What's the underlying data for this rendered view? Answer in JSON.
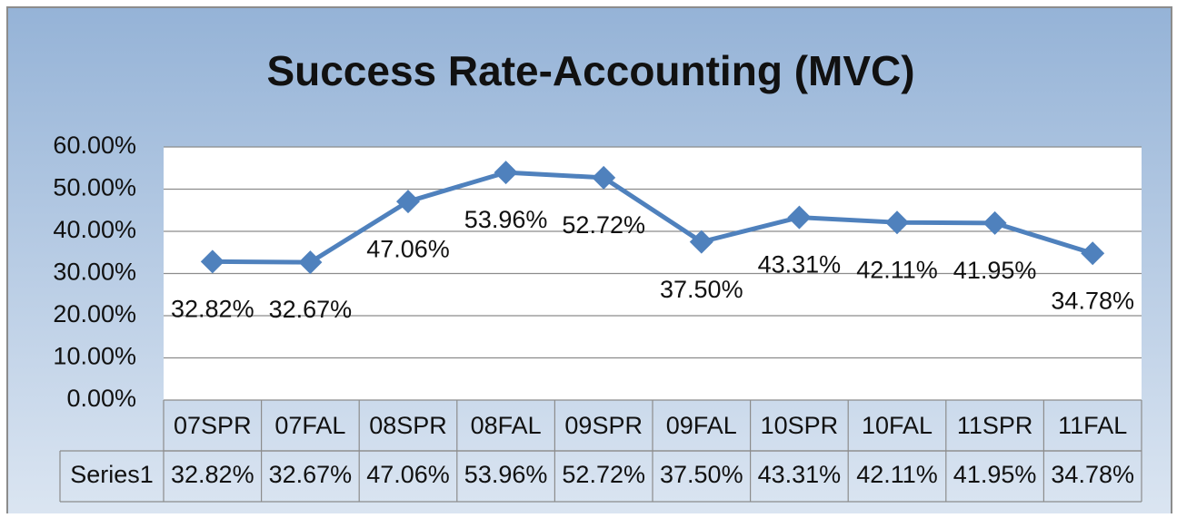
{
  "chart_data": {
    "type": "line",
    "title": "Success Rate-Accounting (MVC)",
    "categories": [
      "07SPR",
      "07FAL",
      "08SPR",
      "08FAL",
      "09SPR",
      "09FAL",
      "10SPR",
      "10FAL",
      "11SPR",
      "11FAL"
    ],
    "series": [
      {
        "name": "Series1",
        "color": "#4f81bd",
        "values": [
          32.82,
          32.67,
          47.06,
          53.96,
          52.72,
          37.5,
          43.31,
          42.11,
          41.95,
          34.78
        ],
        "value_labels": [
          "32.82%",
          "32.67%",
          "47.06%",
          "53.96%",
          "52.72%",
          "37.50%",
          "43.31%",
          "42.11%",
          "41.95%",
          "34.78%"
        ]
      }
    ],
    "ylim": [
      0,
      60
    ],
    "yticks": [
      {
        "value": 0,
        "label": "0.00%"
      },
      {
        "value": 10,
        "label": "10.00%"
      },
      {
        "value": 20,
        "label": "20.00%"
      },
      {
        "value": 30,
        "label": "30.00%"
      },
      {
        "value": 40,
        "label": "40.00%"
      },
      {
        "value": 50,
        "label": "50.00%"
      },
      {
        "value": 60,
        "label": "60.00%"
      }
    ],
    "grid": true,
    "data_table": true
  }
}
